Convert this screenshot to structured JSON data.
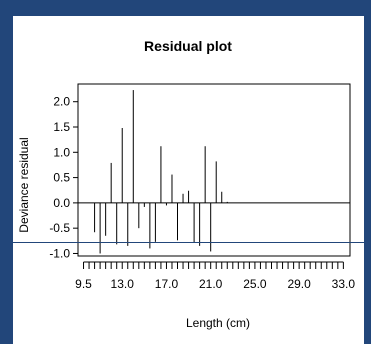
{
  "frame_color": "#22467a",
  "chart_data": {
    "type": "bar",
    "title": "Residual plot",
    "xlabel": "Length (cm)",
    "ylabel": "Deviance residual",
    "xlim": [
      9.0,
      33.6
    ],
    "ylim": [
      -1.05,
      2.35
    ],
    "x_ticks": [
      9.5,
      13.0,
      17.0,
      21.0,
      25.0,
      29.0,
      33.0
    ],
    "x_tick_labels": [
      "9.5",
      "13.0",
      "17.0",
      "21.0",
      "25.0",
      "29.0",
      "33.0"
    ],
    "y_ticks": [
      -1.0,
      -0.5,
      0.0,
      0.5,
      1.0,
      1.5,
      2.0
    ],
    "y_tick_labels": [
      "-1.0",
      "-0.5",
      "0.0",
      "0.5",
      "1.0",
      "1.5",
      "2.0"
    ],
    "rug_start": 9.5,
    "rug_end": 33.0,
    "rug_step": 0.5,
    "grid": false,
    "series": [
      {
        "x": [
          10.5,
          11.0,
          11.5,
          12.0,
          12.5,
          13.0,
          13.5,
          14.0,
          14.5,
          15.0,
          15.5,
          16.0,
          16.5,
          17.0,
          17.5,
          18.0,
          18.5,
          19.0,
          19.5,
          20.0,
          20.5,
          21.0,
          21.5,
          22.0,
          22.5
        ],
        "values": [
          -0.58,
          -1.0,
          -0.65,
          0.79,
          -0.82,
          1.48,
          -0.85,
          2.23,
          -0.5,
          -0.08,
          -0.9,
          -0.77,
          1.12,
          -0.05,
          0.56,
          -0.74,
          0.18,
          0.24,
          -0.78,
          -0.85,
          1.12,
          -0.96,
          0.82,
          0.22,
          0.02
        ]
      }
    ]
  }
}
